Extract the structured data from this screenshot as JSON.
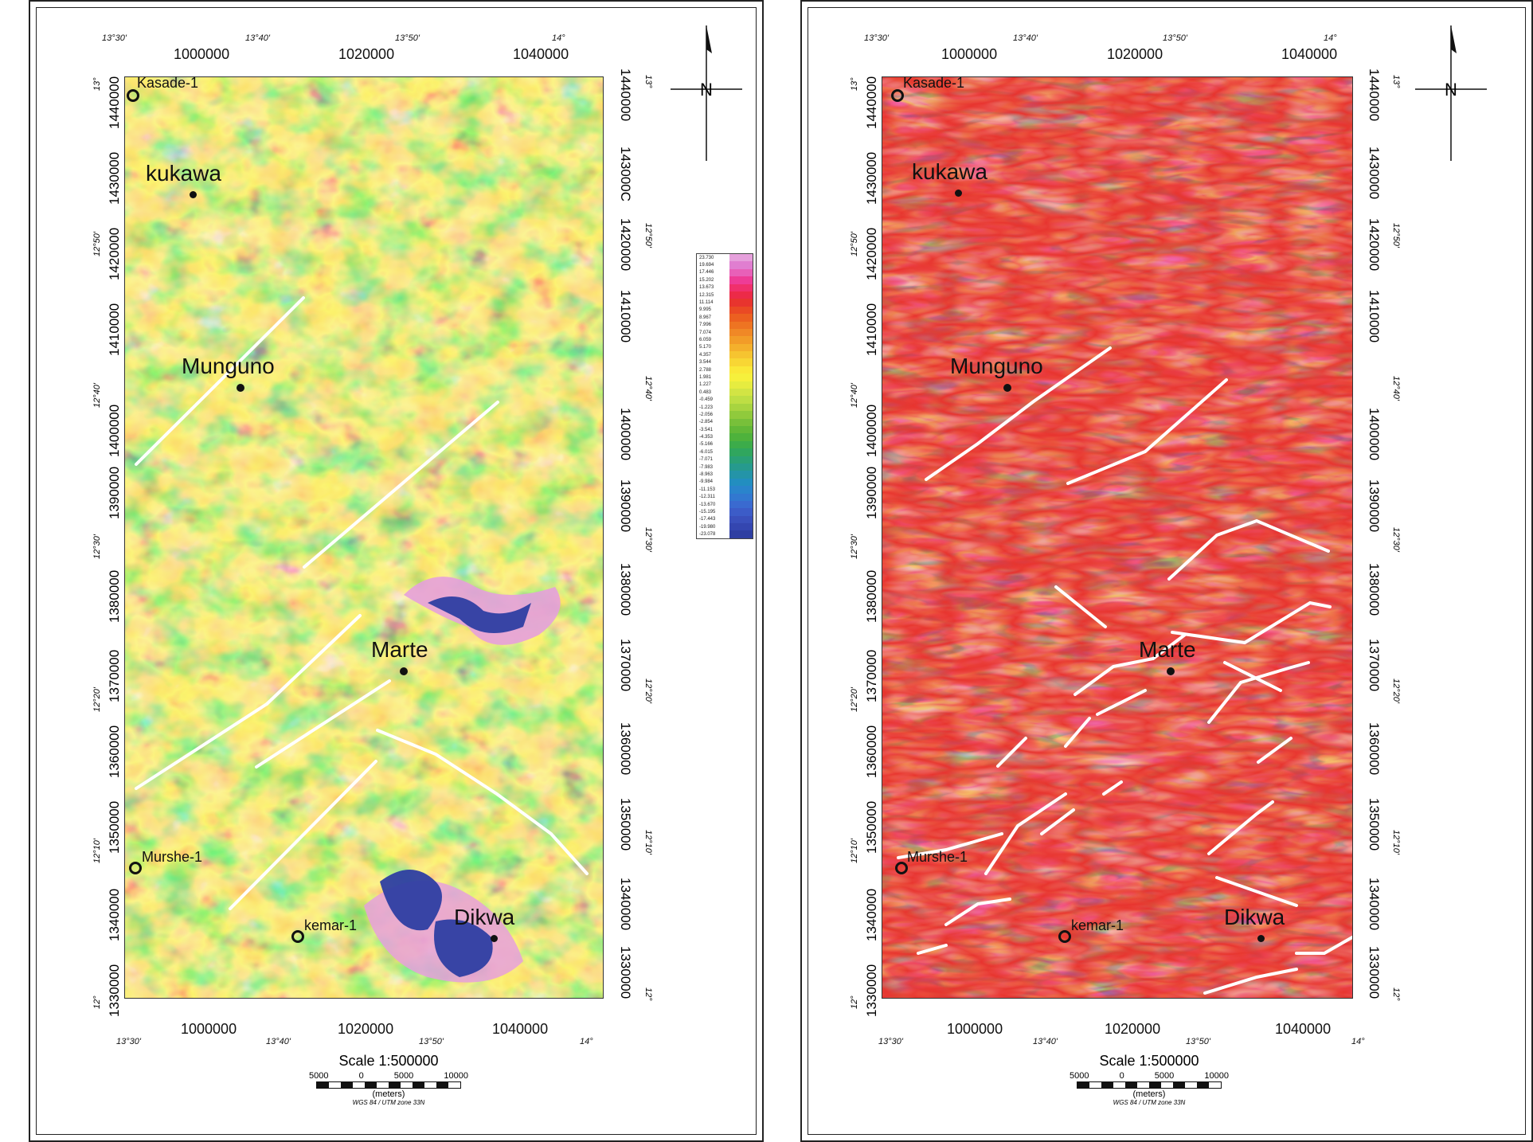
{
  "left_panel": {
    "lon_ticks_top": [
      "13°30'",
      "13°40'",
      "13°50'",
      "14°"
    ],
    "easting_ticks": [
      "1000000",
      "1020000",
      "1040000"
    ],
    "lat_ticks": [
      "13°",
      "12°50'",
      "12°40'",
      "12°30'",
      "12°20'",
      "12°10'",
      "12°"
    ],
    "northing_ticks": [
      "1440000",
      "1430000",
      "1420000",
      "1410000",
      "1400000",
      "1390000",
      "1380000",
      "1370000",
      "1360000",
      "1350000",
      "1340000",
      "1330000"
    ],
    "northing_ticks_right": [
      "1440000",
      "143000C",
      "1420000",
      "1410000",
      "1400000",
      "1390000",
      "1380000",
      "1370000",
      "1360000",
      "1350000",
      "1340000",
      "1330000"
    ],
    "places": {
      "kasade": "Kasade-1",
      "kukawa": "kukawa",
      "munguno": "Munguno",
      "marte": "Marte",
      "murshe": "Murshe-1",
      "kemar": "kemar-1",
      "dikwa": "Dikwa"
    }
  },
  "right_panel": {
    "lon_ticks_top": [
      "13°30'",
      "13°40'",
      "13°50'",
      "14°"
    ],
    "easting_ticks": [
      "1000000",
      "1020000",
      "1040000"
    ],
    "lat_ticks": [
      "13°",
      "12°50'",
      "12°40'",
      "12°30'",
      "12°20'",
      "12°10'",
      "12°"
    ],
    "northing_ticks": [
      "1440000",
      "1430000",
      "1420000",
      "1410000",
      "1400000",
      "1390000",
      "1380000",
      "1370000",
      "1360000",
      "1350000",
      "1340000",
      "1330000"
    ],
    "northing_ticks_right": [
      "1440000",
      "1430000",
      "1420000",
      "1410000",
      "1400000",
      "1390000",
      "1380000",
      "1370000",
      "1360000",
      "1350000",
      "1340000",
      "1330000"
    ],
    "places": {
      "kasade": "Kasade-1",
      "kukawa": "kukawa",
      "munguno": "Munguno",
      "marte": "Marte",
      "murshe": "Murshe-1",
      "kemar": "kemar-1",
      "dikwa": "Dikwa"
    }
  },
  "scale": {
    "title": "Scale 1:500000",
    "bar_labels": [
      "5000",
      "0",
      "5000",
      "10000"
    ],
    "units": "(meters)",
    "projection": "WGS 84 / UTM zone 33N"
  },
  "legend": {
    "values": [
      "23.730",
      "19.694",
      "17.446",
      "15.202",
      "13.673",
      "12.315",
      "11.114",
      "9.995",
      "8.967",
      "7.996",
      "7.074",
      "6.059",
      "5.170",
      "4.357",
      "3.544",
      "2.788",
      "1.981",
      "1.227",
      "0.483",
      "-0.459",
      "-1.223",
      "-2.056",
      "-2.854",
      "-3.541",
      "-4.353",
      "-5.166",
      "-6.015",
      "-7.071",
      "-7.983",
      "-8.963",
      "-9.984",
      "-11.153",
      "-12.311",
      "-13.670",
      "-15.195",
      "-17.443",
      "-19.980",
      "-23.078"
    ],
    "colors": [
      "#e6a0dc",
      "#e07ed0",
      "#e860b8",
      "#ee3c96",
      "#f0306c",
      "#ec2a48",
      "#e8342e",
      "#ea4a24",
      "#ec6020",
      "#ee7422",
      "#f08826",
      "#f29c28",
      "#f4b02c",
      "#f6c430",
      "#f8d634",
      "#fae838",
      "#f6f03c",
      "#e6ec40",
      "#d2e444",
      "#bede44",
      "#a8d440",
      "#90ca3c",
      "#78c03a",
      "#62b838",
      "#4eb23c",
      "#3cac4a",
      "#30a65e",
      "#2aa076",
      "#269a8e",
      "#2494a8",
      "#228ec0",
      "#2a84cc",
      "#3278d0",
      "#3a6ad0",
      "#3c5cc8",
      "#3a50bc",
      "#3446b0",
      "#2e3ea2"
    ]
  },
  "north_arrow": {
    "symbol": "N"
  }
}
